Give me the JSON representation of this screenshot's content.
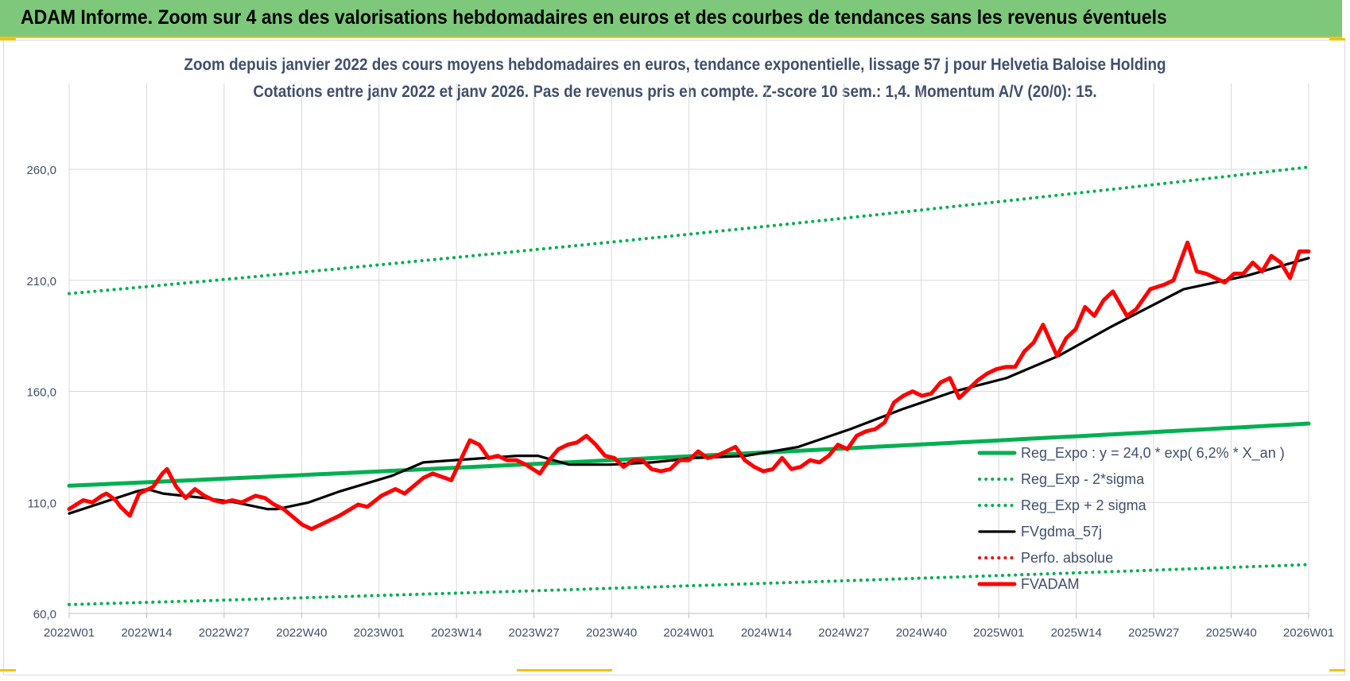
{
  "header": {
    "title": "ADAM Informe. Zoom sur 4 ans des valorisations hebdomadaires en euros et des courbes de tendances sans les revenus éventuels"
  },
  "chart_data": {
    "type": "line",
    "title": "Zoom depuis janvier 2022 des cours moyens hebdomadaires en euros, tendance exponentielle, lissage 57 j pour Helvetia Baloise Holding",
    "subtitle": "Cotations entre janv 2022 et janv 2026. Pas de revenus pris en compte. Z-score 10 sem.: 1,4. Momentum A/V (20/0): 15.",
    "xlabel": "",
    "ylabel": "",
    "ylim": [
      60,
      260
    ],
    "y_ticks": [
      "60,0",
      "110,0",
      "160,0",
      "210,0",
      "260,0"
    ],
    "x_ticks": [
      "2022W01",
      "2022W14",
      "2022W27",
      "2022W40",
      "2023W01",
      "2023W14",
      "2023W27",
      "2023W40",
      "2024W01",
      "2024W14",
      "2024W27",
      "2024W40",
      "2025W01",
      "2025W14",
      "2025W27",
      "2025W40",
      "2026W01"
    ],
    "legend": {
      "placement": "lower-right"
    },
    "series": [
      {
        "name": "Reg_Expo : y = 24,0 * exp( 6,2% *  X_an )",
        "style": "solid-thick",
        "color": "#00b050",
        "anchors": [
          [
            0,
            117.5
          ],
          [
            208,
            145.5
          ]
        ]
      },
      {
        "name": "Reg_Exp - 2*sigma",
        "style": "dotted",
        "color": "#00b050",
        "anchors": [
          [
            0,
            64
          ],
          [
            208,
            82
          ]
        ]
      },
      {
        "name": "Reg_Exp + 2 sigma",
        "style": "dotted",
        "color": "#00b050",
        "anchors": [
          [
            0,
            204
          ],
          [
            208,
            261
          ]
        ]
      },
      {
        "name": "FVgdma_57j",
        "style": "solid",
        "color": "#000000",
        "anchors": [
          [
            0,
            105
          ],
          [
            13,
            115
          ],
          [
            15,
            116
          ],
          [
            18,
            114
          ],
          [
            26,
            112
          ],
          [
            32,
            110
          ],
          [
            38,
            107
          ],
          [
            40,
            107
          ],
          [
            46,
            110
          ],
          [
            52,
            115
          ],
          [
            62,
            122
          ],
          [
            68,
            128
          ],
          [
            80,
            130
          ],
          [
            86,
            131
          ],
          [
            90,
            131
          ],
          [
            96,
            127
          ],
          [
            104,
            127
          ],
          [
            112,
            128
          ],
          [
            120,
            130
          ],
          [
            130,
            131
          ],
          [
            140,
            135
          ],
          [
            150,
            143
          ],
          [
            160,
            152
          ],
          [
            170,
            160
          ],
          [
            180,
            166
          ],
          [
            190,
            176
          ],
          [
            200,
            189
          ],
          [
            214,
            206
          ],
          [
            226,
            212
          ],
          [
            238,
            220
          ]
        ]
      },
      {
        "name": "Perfo. absolue",
        "style": "dotted",
        "color": "#ff0000",
        "anchors": []
      },
      {
        "name": "FVADAM",
        "style": "solid-thick",
        "color": "#ff0000",
        "anchors": [
          [
            0,
            107
          ],
          [
            3,
            111
          ],
          [
            5,
            110
          ],
          [
            7,
            113
          ],
          [
            8,
            114
          ],
          [
            10,
            111
          ],
          [
            11,
            108
          ],
          [
            13,
            104
          ],
          [
            15,
            114
          ],
          [
            17,
            116
          ],
          [
            18,
            117
          ],
          [
            20,
            123
          ],
          [
            21,
            125
          ],
          [
            22,
            121
          ],
          [
            23,
            117
          ],
          [
            25,
            112
          ],
          [
            27,
            116
          ],
          [
            29,
            113
          ],
          [
            31,
            111
          ],
          [
            33,
            110
          ],
          [
            35,
            111
          ],
          [
            37,
            110
          ],
          [
            40,
            113
          ],
          [
            42,
            112
          ],
          [
            44,
            109
          ],
          [
            46,
            107
          ],
          [
            50,
            100
          ],
          [
            52,
            98
          ],
          [
            55,
            101
          ],
          [
            58,
            104
          ],
          [
            62,
            109
          ],
          [
            64,
            108
          ],
          [
            67,
            113
          ],
          [
            70,
            116
          ],
          [
            72,
            114
          ],
          [
            76,
            121
          ],
          [
            78,
            123
          ],
          [
            82,
            120
          ],
          [
            84,
            129
          ],
          [
            86,
            138
          ],
          [
            88,
            136
          ],
          [
            90,
            130
          ],
          [
            92,
            131
          ],
          [
            94,
            129
          ],
          [
            96,
            129
          ],
          [
            98,
            127
          ],
          [
            101,
            123
          ],
          [
            103,
            129
          ],
          [
            105,
            134
          ],
          [
            107,
            136
          ],
          [
            109,
            137
          ],
          [
            111,
            140
          ],
          [
            113,
            136
          ],
          [
            115,
            131
          ],
          [
            117,
            130
          ],
          [
            119,
            126
          ],
          [
            121,
            129
          ],
          [
            123,
            129
          ],
          [
            125,
            125
          ],
          [
            127,
            124
          ],
          [
            129,
            125
          ],
          [
            131,
            129
          ],
          [
            133,
            129
          ],
          [
            135,
            133
          ],
          [
            137,
            130
          ],
          [
            139,
            131
          ],
          [
            141,
            133
          ],
          [
            143,
            135
          ],
          [
            145,
            129
          ],
          [
            147,
            126
          ],
          [
            149,
            124
          ],
          [
            151,
            125
          ],
          [
            153,
            130
          ],
          [
            155,
            125
          ],
          [
            157,
            126
          ],
          [
            159,
            129
          ],
          [
            161,
            128
          ],
          [
            163,
            131
          ],
          [
            165,
            136
          ],
          [
            167,
            134
          ],
          [
            169,
            140
          ],
          [
            171,
            142
          ],
          [
            173,
            143
          ],
          [
            175,
            146
          ],
          [
            177,
            155
          ],
          [
            179,
            158
          ],
          [
            181,
            160
          ],
          [
            183,
            158
          ],
          [
            185,
            159
          ],
          [
            187,
            164
          ],
          [
            189,
            166
          ],
          [
            191,
            157
          ],
          [
            193,
            161
          ],
          [
            195,
            165
          ],
          [
            197,
            168
          ],
          [
            199,
            170
          ],
          [
            201,
            171
          ],
          [
            203,
            171
          ],
          [
            205,
            178
          ],
          [
            207,
            182
          ],
          [
            209,
            190
          ],
          [
            212,
            176
          ],
          [
            214,
            184
          ],
          [
            216,
            188
          ],
          [
            218,
            198
          ],
          [
            220,
            194
          ],
          [
            222,
            201
          ],
          [
            224,
            205
          ],
          [
            227,
            194
          ],
          [
            229,
            197
          ],
          [
            232,
            206
          ],
          [
            235,
            208
          ],
          [
            237,
            210
          ],
          [
            240,
            227
          ],
          [
            242,
            214
          ],
          [
            244,
            213
          ],
          [
            246,
            211
          ],
          [
            248,
            209
          ],
          [
            250,
            213
          ],
          [
            252,
            213
          ],
          [
            254,
            218
          ],
          [
            256,
            214
          ],
          [
            258,
            221
          ],
          [
            260,
            218
          ],
          [
            262,
            211
          ],
          [
            264,
            223
          ],
          [
            266,
            223
          ]
        ]
      }
    ]
  }
}
